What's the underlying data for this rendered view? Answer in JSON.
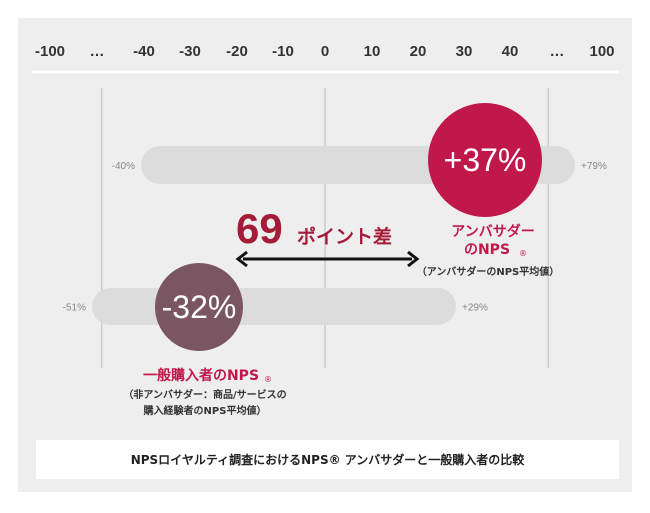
{
  "chart_data": {
    "type": "range",
    "x_ticks": [
      "-100",
      "…",
      "-40",
      "-30",
      "-20",
      "-10",
      "0",
      "10",
      "20",
      "30",
      "40",
      "…",
      "100"
    ],
    "series": [
      {
        "key": "ambassador",
        "name_line1": "アンバサダー",
        "name_line2": "のNPS",
        "mark": "®",
        "note_lines": [
          "（アンバサダーのNPS平均値）"
        ],
        "value": 37,
        "value_label": "+37%",
        "range_min": -40,
        "range_min_label": "-40%",
        "range_max": 79,
        "range_max_label": "+79%",
        "color": "#c0184a"
      },
      {
        "key": "general",
        "name_line1": "一般購入者のNPS",
        "mark": "®",
        "note_lines": [
          "（非アンバサダー：商品/サービスの",
          "購入経験者のNPS平均値）"
        ],
        "value": -32,
        "value_label": "-32%",
        "range_min": -51,
        "range_min_label": "-51%",
        "range_max": 29,
        "range_max_label": "+29%",
        "color": "#7a5562"
      }
    ],
    "difference": {
      "number": "69",
      "text": "ポイント差"
    },
    "caption": "NPSロイヤルティ調査におけるNPS® アンバサダーと一般購入者の比較"
  },
  "colors": {
    "background": "#efeeee",
    "range_bar": "#dddcdc",
    "accent": "#a41b37"
  }
}
